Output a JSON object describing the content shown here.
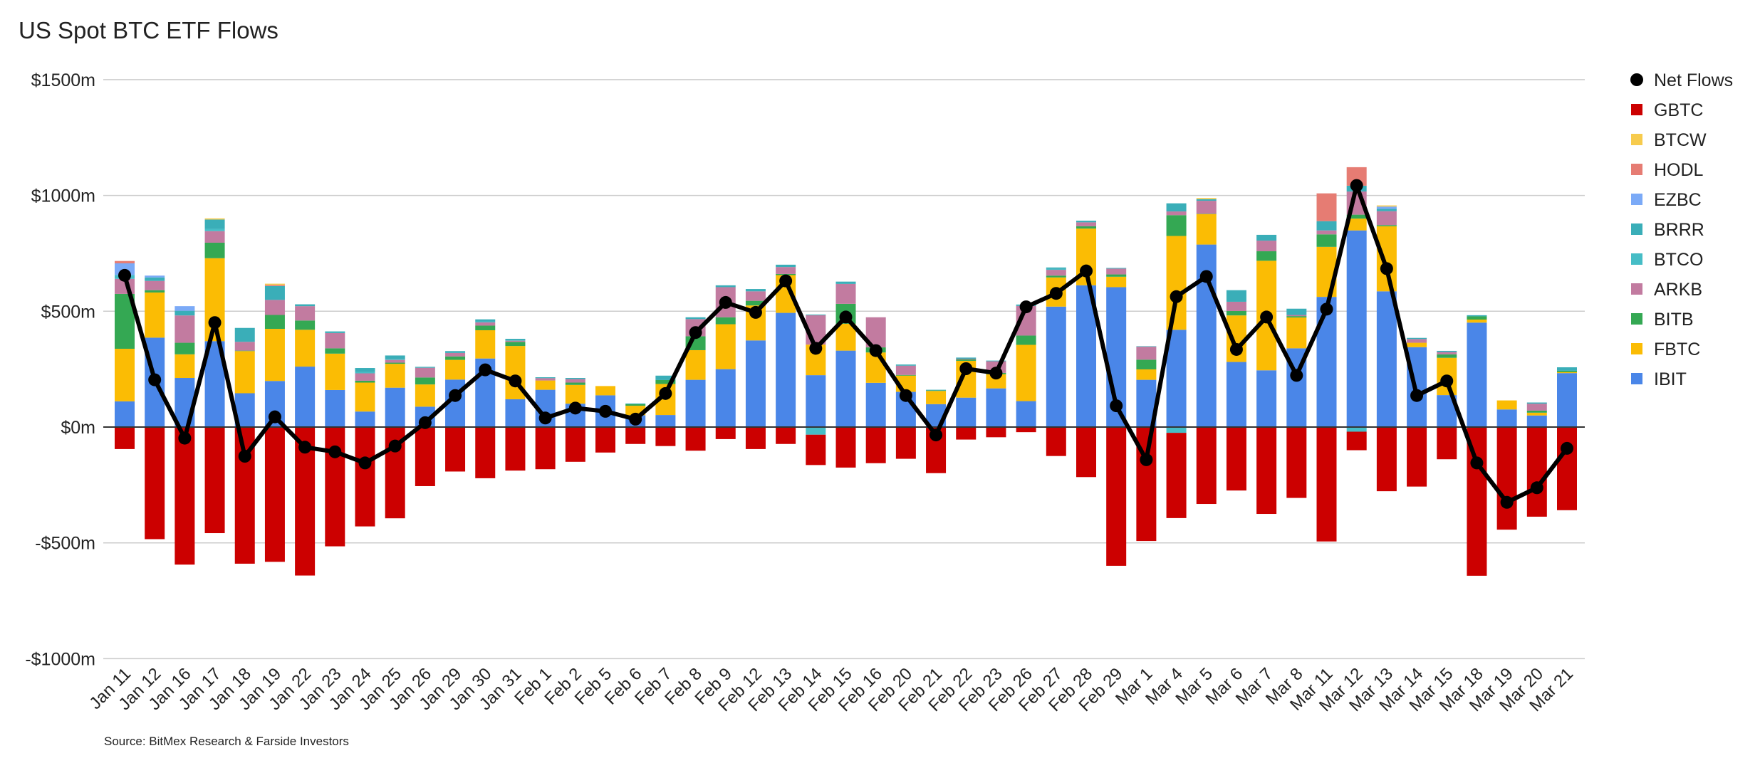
{
  "chart_data": {
    "type": "bar",
    "stacked": true,
    "title": "US Spot BTC ETF Flows",
    "source": "Source: BitMex Research & Farside Investors",
    "ylim": [
      -1000,
      1500
    ],
    "yticks": [
      -1000,
      -500,
      0,
      500,
      1000,
      1500
    ],
    "ytick_labels": [
      "-$1000m",
      "-$500m",
      "$0m",
      "$500m",
      "$1000m",
      "$1500m"
    ],
    "grid": true,
    "legend_position": "right",
    "categories": [
      "Jan 11",
      "Jan 12",
      "Jan 16",
      "Jan 17",
      "Jan 18",
      "Jan 19",
      "Jan 22",
      "Jan 23",
      "Jan 24",
      "Jan 25",
      "Jan 26",
      "Jan 29",
      "Jan 30",
      "Jan 31",
      "Feb 1",
      "Feb 2",
      "Feb 5",
      "Feb 6",
      "Feb 7",
      "Feb 8",
      "Feb 9",
      "Feb 12",
      "Feb 13",
      "Feb 14",
      "Feb 15",
      "Feb 16",
      "Feb 20",
      "Feb 21",
      "Feb 22",
      "Feb 23",
      "Feb 26",
      "Feb 27",
      "Feb 28",
      "Feb 29",
      "Mar 1",
      "Mar 4",
      "Mar 5",
      "Mar 6",
      "Mar 7",
      "Mar 8",
      "Mar 11",
      "Mar 12",
      "Mar 13",
      "Mar 14",
      "Mar 15",
      "Mar 18",
      "Mar 19",
      "Mar 20",
      "Mar 21"
    ],
    "series": [
      {
        "name": "IBIT",
        "color": "#4a86e8",
        "values": [
          111,
          386,
          212,
          371,
          146,
          199,
          261,
          160,
          67,
          170,
          88,
          205,
          296,
          120,
          161,
          101,
          137,
          51,
          52,
          204,
          250,
          374,
          493,
          224,
          330,
          191,
          152,
          99,
          127,
          167,
          112,
          520,
          612,
          604,
          204,
          420,
          788,
          281,
          245,
          340,
          562,
          849,
          586,
          345,
          138,
          451,
          76,
          50,
          233
        ]
      },
      {
        "name": "FBTC",
        "color": "#fbbc04",
        "values": [
          227,
          195,
          102,
          358,
          182,
          225,
          159,
          157,
          125,
          103,
          96,
          85,
          122,
          230,
          40,
          81,
          40,
          41,
          134,
          128,
          194,
          151,
          163,
          132,
          116,
          131,
          70,
          57,
          159,
          61,
          243,
          126,
          245,
          45,
          45,
          405,
          132,
          201,
          473,
          133,
          216,
          51,
          281,
          19,
          161,
          13,
          39,
          12,
          4
        ]
      },
      {
        "name": "BITB",
        "color": "#34a853",
        "values": [
          237,
          10,
          50,
          67,
          2,
          60,
          40,
          23,
          8,
          5,
          30,
          15,
          20,
          18,
          0,
          10,
          0,
          7,
          17,
          60,
          30,
          20,
          5,
          0,
          86,
          22,
          3,
          2,
          6,
          6,
          40,
          8,
          10,
          10,
          42,
          90,
          1,
          19,
          41,
          6,
          54,
          17,
          5,
          0,
          15,
          14,
          0,
          9,
          6
        ]
      },
      {
        "name": "ARKB",
        "color": "#c27ba0",
        "values": [
          65,
          40,
          118,
          50,
          38,
          65,
          62,
          66,
          32,
          12,
          42,
          15,
          14,
          5,
          10,
          15,
          0,
          0,
          0,
          74,
          130,
          41,
          30,
          127,
          86,
          130,
          40,
          0,
          3,
          50,
          128,
          25,
          17,
          25,
          56,
          16,
          56,
          40,
          46,
          5,
          17,
          100,
          60,
          16,
          10,
          0,
          0,
          30,
          0
        ]
      },
      {
        "name": "BTCO",
        "color": "#46bdc6",
        "values": [
          17,
          0,
          0,
          10,
          0,
          0,
          0,
          0,
          5,
          3,
          0,
          0,
          3,
          2,
          0,
          0,
          0,
          0,
          0,
          0,
          0,
          0,
          0,
          -33,
          0,
          0,
          0,
          0,
          0,
          0,
          0,
          5,
          0,
          0,
          0,
          -25,
          0,
          0,
          0,
          0,
          0,
          -20,
          0,
          0,
          0,
          0,
          0,
          0,
          0
        ]
      },
      {
        "name": "BRRR",
        "color": "#3aaeb8",
        "values": [
          0,
          15,
          20,
          40,
          60,
          60,
          8,
          7,
          18,
          16,
          4,
          8,
          10,
          6,
          4,
          5,
          0,
          3,
          19,
          8,
          8,
          10,
          10,
          3,
          10,
          0,
          5,
          3,
          5,
          3,
          6,
          5,
          7,
          3,
          2,
          35,
          7,
          50,
          25,
          27,
          40,
          25,
          10,
          5,
          5,
          5,
          0,
          5,
          15
        ]
      },
      {
        "name": "EZBC",
        "color": "#7baaf7",
        "values": [
          50,
          8,
          20,
          0,
          0,
          0,
          0,
          0,
          0,
          0,
          0,
          0,
          0,
          0,
          0,
          0,
          0,
          0,
          0,
          0,
          0,
          0,
          0,
          0,
          0,
          0,
          0,
          0,
          0,
          0,
          0,
          0,
          0,
          0,
          0,
          0,
          0,
          0,
          0,
          0,
          0,
          0,
          10,
          0,
          0,
          0,
          0,
          0,
          0
        ]
      },
      {
        "name": "HODL",
        "color": "#e67c73",
        "values": [
          10,
          0,
          0,
          0,
          0,
          5,
          0,
          0,
          0,
          0,
          0,
          0,
          0,
          0,
          0,
          0,
          0,
          0,
          0,
          0,
          0,
          0,
          0,
          0,
          0,
          0,
          0,
          0,
          0,
          0,
          0,
          0,
          0,
          0,
          0,
          0,
          0,
          0,
          0,
          0,
          120,
          80,
          0,
          0,
          0,
          0,
          0,
          0,
          0
        ]
      },
      {
        "name": "BTCW",
        "color": "#f7cb4d",
        "values": [
          0,
          0,
          0,
          5,
          0,
          5,
          0,
          0,
          0,
          0,
          0,
          0,
          0,
          0,
          0,
          0,
          0,
          0,
          0,
          0,
          0,
          0,
          0,
          0,
          0,
          0,
          0,
          0,
          0,
          0,
          0,
          0,
          0,
          0,
          0,
          0,
          5,
          0,
          0,
          0,
          0,
          0,
          5,
          0,
          0,
          0,
          0,
          0,
          0
        ]
      },
      {
        "name": "GBTC",
        "color": "#cc0000",
        "values": [
          -95,
          -484,
          -594,
          -458,
          -590,
          -582,
          -641,
          -515,
          -429,
          -394,
          -255,
          -192,
          -221,
          -188,
          -182,
          -150,
          -110,
          -73,
          -82,
          -102,
          -52,
          -95,
          -73,
          -131,
          -175,
          -156,
          -137,
          -199,
          -54,
          -44,
          -22,
          -125,
          -216,
          -599,
          -492,
          -368,
          -332,
          -274,
          -375,
          -306,
          -494,
          -80,
          -277,
          -257,
          -139,
          -642,
          -443,
          -387,
          -359
        ]
      }
    ],
    "net_flows": {
      "name": "Net Flows",
      "color": "#000000",
      "type": "line",
      "values": [
        655,
        204,
        -48,
        451,
        -126,
        44,
        -87,
        -107,
        -155,
        -82,
        19,
        136,
        247,
        199,
        39,
        82,
        68,
        34,
        145,
        408,
        538,
        495,
        631,
        340,
        475,
        330,
        136,
        -34,
        252,
        233,
        519,
        577,
        674,
        92,
        -141,
        563,
        650,
        335,
        475,
        223,
        509,
        1043,
        684,
        136,
        199,
        -155,
        -325,
        -262,
        -92
      ]
    },
    "legend": [
      "Net Flows",
      "GBTC",
      "BTCW",
      "HODL",
      "EZBC",
      "BRRR",
      "BTCO",
      "ARKB",
      "BITB",
      "FBTC",
      "IBIT"
    ]
  }
}
